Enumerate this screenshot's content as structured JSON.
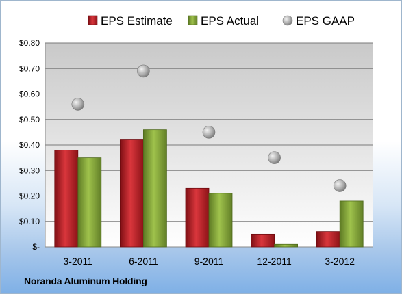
{
  "company": "Noranda Aluminum Holding",
  "chart_data": {
    "type": "bar",
    "categories": [
      "3-2011",
      "6-2011",
      "9-2011",
      "12-2011",
      "3-2012"
    ],
    "series": [
      {
        "name": "EPS Estimate",
        "kind": "bar",
        "color": "#c0232b",
        "values": [
          0.38,
          0.42,
          0.23,
          0.05,
          0.06
        ]
      },
      {
        "name": "EPS Actual",
        "kind": "bar",
        "color": "#8cae3e",
        "values": [
          0.35,
          0.46,
          0.21,
          0.01,
          0.18
        ]
      },
      {
        "name": "EPS GAAP",
        "kind": "marker",
        "color": "#a9a9a9",
        "values": [
          0.56,
          0.69,
          0.45,
          0.35,
          0.24
        ]
      }
    ],
    "yticks": [
      "$-",
      "$0.10",
      "$0.20",
      "$0.30",
      "$0.40",
      "$0.50",
      "$0.60",
      "$0.70",
      "$0.80"
    ],
    "ylim": [
      0,
      0.8
    ],
    "grid": true,
    "legend_position": "top"
  }
}
